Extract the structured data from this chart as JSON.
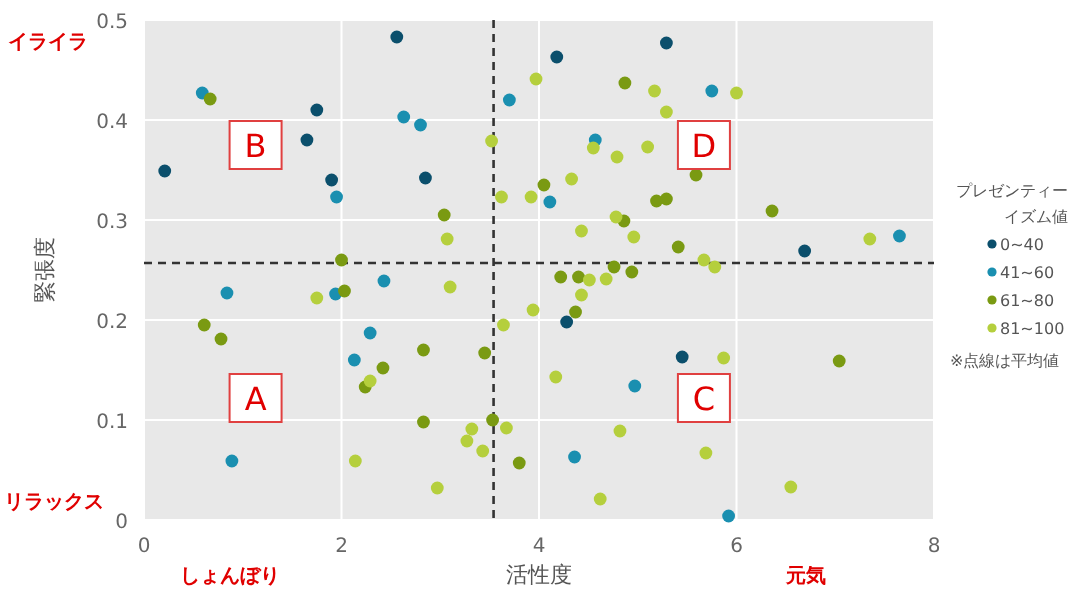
{
  "chart_data": {
    "type": "scatter",
    "xlabel": "活性度",
    "ylabel": "緊張度",
    "legend_title": "プレゼンティーイズム値",
    "xlim": [
      0,
      8
    ],
    "ylim": [
      0,
      0.5
    ],
    "xticks": [
      0,
      2,
      4,
      6,
      8
    ],
    "yticks": [
      0,
      0.1,
      0.2,
      0.3,
      0.4,
      0.5
    ],
    "grid": true,
    "legend": "right",
    "marker": "circle",
    "series": [
      {
        "name": "0~40",
        "color": "#0b4f6c",
        "x": [
          0.21,
          2.56,
          1.75,
          1.65,
          1.9,
          2.85,
          4.18,
          5.29,
          6.69,
          4.28,
          5.45
        ],
        "values": [
          0.349,
          0.483,
          0.41,
          0.38,
          0.34,
          0.342,
          0.463,
          0.477,
          0.269,
          0.198,
          0.163
        ]
      },
      {
        "name": "41~60",
        "color": "#1a8fb0",
        "x": [
          0.59,
          2.63,
          2.8,
          1.95,
          3.7,
          0.84,
          1.94,
          2.43,
          2.29,
          2.13,
          0.89,
          5.75,
          4.57,
          4.11,
          7.65,
          4.97,
          4.36,
          5.92
        ],
        "values": [
          0.427,
          0.403,
          0.395,
          0.323,
          0.42,
          0.227,
          0.226,
          0.239,
          0.187,
          0.16,
          0.059,
          0.429,
          0.38,
          0.318,
          0.284,
          0.134,
          0.063,
          0.004
        ]
      },
      {
        "name": "61~80",
        "color": "#7a9a12",
        "x": [
          0.67,
          3.04,
          2.0,
          2.03,
          0.61,
          0.78,
          2.42,
          2.24,
          2.83,
          3.45,
          2.83,
          3.53,
          3.8,
          4.87,
          5.59,
          4.05,
          5.19,
          5.29,
          4.86,
          6.36,
          5.41,
          4.76,
          4.22,
          4.4,
          4.94,
          4.37,
          7.04
        ],
        "values": [
          0.421,
          0.305,
          0.26,
          0.229,
          0.195,
          0.181,
          0.152,
          0.133,
          0.17,
          0.167,
          0.098,
          0.1,
          0.057,
          0.437,
          0.345,
          0.335,
          0.319,
          0.321,
          0.299,
          0.309,
          0.273,
          0.253,
          0.243,
          0.243,
          0.248,
          0.208,
          0.159
        ]
      },
      {
        "name": "81~100",
        "color": "#b5cf3d",
        "x": [
          3.07,
          3.52,
          3.97,
          3.62,
          3.92,
          1.75,
          3.1,
          2.29,
          3.32,
          3.27,
          3.67,
          3.43,
          2.14,
          2.97,
          3.64,
          3.94,
          5.17,
          6.0,
          5.29,
          4.55,
          4.79,
          5.1,
          4.33,
          4.78,
          4.43,
          4.96,
          7.35,
          5.67,
          5.78,
          4.51,
          4.68,
          4.43,
          5.87,
          4.17,
          4.82,
          5.69,
          4.62,
          6.55
        ],
        "values": [
          0.281,
          0.379,
          0.441,
          0.323,
          0.323,
          0.222,
          0.233,
          0.139,
          0.091,
          0.079,
          0.092,
          0.069,
          0.059,
          0.032,
          0.195,
          0.21,
          0.429,
          0.427,
          0.408,
          0.372,
          0.363,
          0.373,
          0.341,
          0.303,
          0.289,
          0.283,
          0.281,
          0.26,
          0.253,
          0.24,
          0.241,
          0.225,
          0.162,
          0.143,
          0.089,
          0.067,
          0.021,
          0.033
        ]
      }
    ],
    "ref_lines": [
      {
        "axis": "x",
        "value": 3.54,
        "color": "#333333",
        "line_style": "dashed"
      },
      {
        "axis": "y",
        "value": 0.257,
        "color": "#333333",
        "line_style": "dashed"
      }
    ],
    "annotations": [
      "A",
      "B",
      "C",
      "D",
      "イライラ",
      "リラックス",
      "しょんぼり",
      "元気",
      "※点線は平均値"
    ]
  }
}
